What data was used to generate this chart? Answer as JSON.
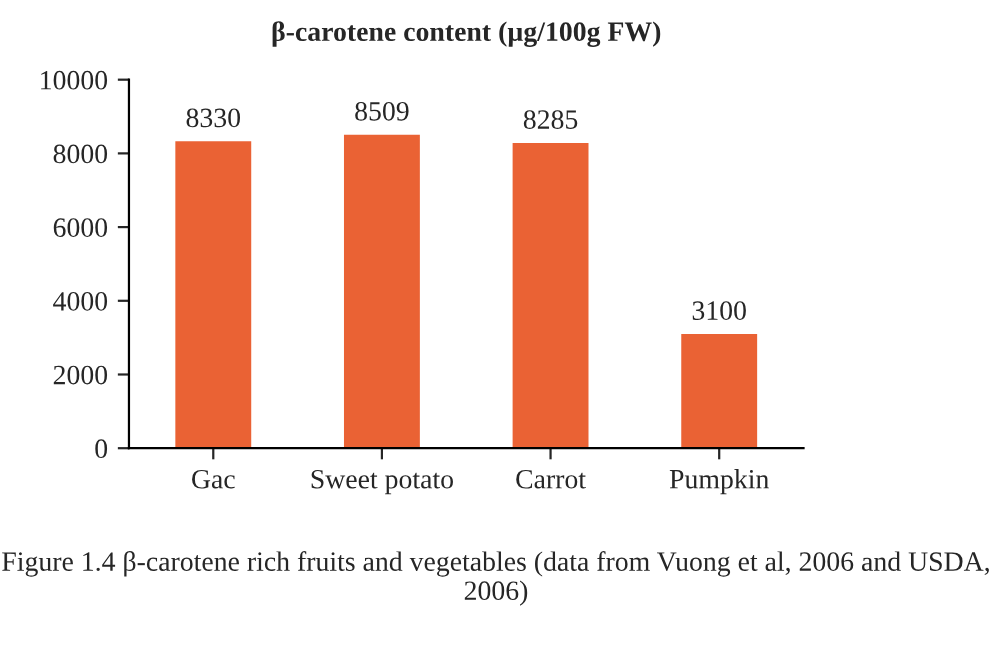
{
  "chart_data": {
    "type": "bar",
    "title": "β-carotene content (µg/100g FW)",
    "categories": [
      "Gac",
      "Sweet potato",
      "Carrot",
      "Pumpkin"
    ],
    "values": [
      8330,
      8509,
      8285,
      3100
    ],
    "color": "#ea6234",
    "ylim": [
      0,
      10000
    ],
    "yticks": [
      0,
      2000,
      4000,
      6000,
      8000,
      10000
    ],
    "grid": false,
    "legend": false,
    "data_labels": true,
    "annotations": [
      "Figure 1.4 β-carotene rich fruits and vegetables (data from Vuong et al, 2006 and USDA, 2006)"
    ]
  }
}
